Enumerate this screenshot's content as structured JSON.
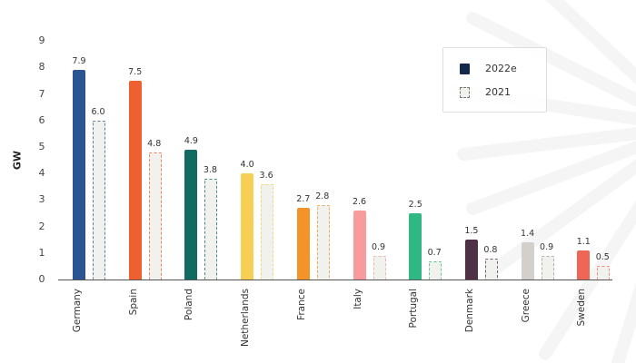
{
  "chart_data": {
    "type": "bar",
    "title": "",
    "xlabel": "",
    "ylabel": "GW",
    "ylim": [
      0,
      9
    ],
    "yticks": [
      0,
      1,
      2,
      3,
      4,
      5,
      6,
      7,
      8,
      9
    ],
    "grid": false,
    "legend_position": "top-right",
    "categories": [
      "Germany",
      "Spain",
      "Poland",
      "Netherlands",
      "France",
      "Italy",
      "Portugal",
      "Denmark",
      "Greece",
      "Sweden"
    ],
    "series": [
      {
        "name": "2022e",
        "style": "solid",
        "values": [
          7.9,
          7.5,
          4.9,
          4.0,
          2.7,
          2.6,
          2.5,
          1.5,
          1.4,
          1.1
        ],
        "value_labels": [
          "7.9",
          "7.5",
          "4.9",
          "4.0",
          "2.7",
          "2.6",
          "2.5",
          "1.5",
          "1.4",
          "1.1"
        ]
      },
      {
        "name": "2021",
        "style": "dashed-outline",
        "values": [
          6.0,
          4.8,
          3.8,
          3.6,
          2.8,
          0.9,
          0.7,
          0.8,
          0.9,
          0.5
        ],
        "value_labels": [
          "6.0",
          "4.8",
          "3.8",
          "3.6",
          "2.8",
          "0.9",
          "0.7",
          "0.8",
          "0.9",
          "0.5"
        ]
      }
    ],
    "colors": [
      "#2a5592",
      "#ee6030",
      "#126b62",
      "#f7cf55",
      "#f49428",
      "#f79b9e",
      "#2fb884",
      "#4f3145",
      "#d4cfcb",
      "#ee6655"
    ]
  },
  "legend": {
    "items": [
      {
        "label": "2022e",
        "color": "#14294a"
      },
      {
        "label": "2021",
        "color": "#f1f1ee"
      }
    ]
  },
  "axis": {
    "y_label": "GW",
    "y_ticks": [
      "0",
      "1",
      "2",
      "3",
      "4",
      "5",
      "6",
      "7",
      "8",
      "9"
    ]
  }
}
